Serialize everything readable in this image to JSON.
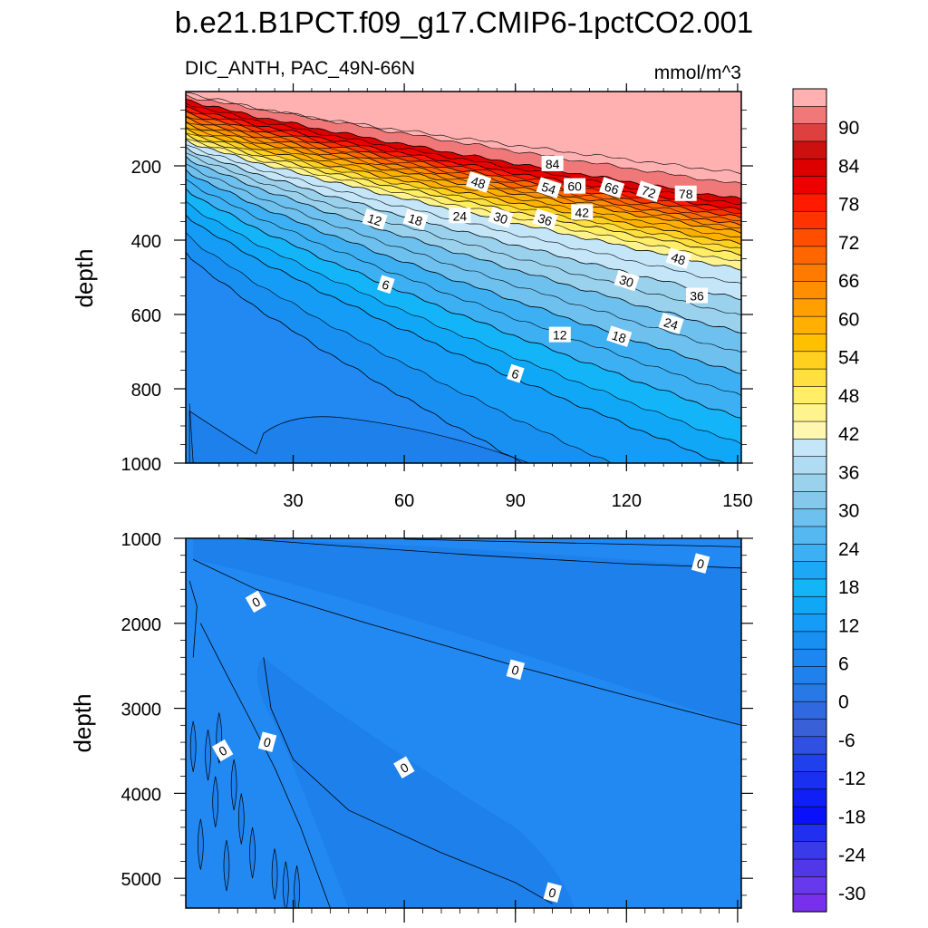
{
  "title": "b.e21.B1PCT.f09_g17.CMIP6-1pctCO2.001",
  "chart_data": [
    {
      "type": "contour",
      "panel": "upper",
      "subtitle_left": "DIC_ANTH, PAC_49N-66N",
      "subtitle_right": "mmol/m^3",
      "ylabel": "depth",
      "xlabel": "",
      "xlim": [
        1,
        151
      ],
      "ylim": [
        1000,
        0
      ],
      "xticks": [
        30,
        60,
        90,
        120,
        150
      ],
      "yticks": [
        200,
        400,
        600,
        800,
        1000
      ],
      "field": {
        "description": "anthropogenic DIC decreasing with depth; isolines deepen toward larger x",
        "surface_value": 100,
        "isolines": [
          {
            "value": 84,
            "depth_at_x1": 20,
            "depth_at_x151": 290
          },
          {
            "value": 78,
            "depth_at_x1": 40,
            "depth_at_x151": 320
          },
          {
            "value": 72,
            "depth_at_x1": 55,
            "depth_at_x151": 340
          },
          {
            "value": 66,
            "depth_at_x1": 70,
            "depth_at_x151": 360
          },
          {
            "value": 60,
            "depth_at_x1": 85,
            "depth_at_x151": 380
          },
          {
            "value": 54,
            "depth_at_x1": 100,
            "depth_at_x151": 410
          },
          {
            "value": 48,
            "depth_at_x1": 115,
            "depth_at_x151": 440
          },
          {
            "value": 42,
            "depth_at_x1": 130,
            "depth_at_x151": 480
          },
          {
            "value": 36,
            "depth_at_x1": 150,
            "depth_at_x151": 560
          },
          {
            "value": 30,
            "depth_at_x1": 175,
            "depth_at_x151": 650
          },
          {
            "value": 24,
            "depth_at_x1": 210,
            "depth_at_x151": 760
          },
          {
            "value": 18,
            "depth_at_x1": 260,
            "depth_at_x151": 880
          },
          {
            "value": 12,
            "depth_at_x1": 330,
            "depth_at_x151": 1020
          },
          {
            "value": 6,
            "depth_at_x1": 430,
            "depth_at_x151": 1300
          }
        ]
      },
      "contour_labels": [
        {
          "text": "84",
          "x": 100,
          "depth": 195
        },
        {
          "text": "48",
          "x": 80,
          "depth": 245
        },
        {
          "text": "54",
          "x": 99,
          "depth": 260
        },
        {
          "text": "60",
          "x": 106,
          "depth": 255
        },
        {
          "text": "66",
          "x": 116,
          "depth": 260
        },
        {
          "text": "72",
          "x": 126,
          "depth": 270
        },
        {
          "text": "78",
          "x": 136,
          "depth": 275
        },
        {
          "text": "12",
          "x": 52,
          "depth": 345
        },
        {
          "text": "18",
          "x": 63,
          "depth": 345
        },
        {
          "text": "24",
          "x": 75,
          "depth": 335
        },
        {
          "text": "30",
          "x": 86,
          "depth": 340
        },
        {
          "text": "36",
          "x": 98,
          "depth": 345
        },
        {
          "text": "42",
          "x": 108,
          "depth": 325
        },
        {
          "text": "48",
          "x": 134,
          "depth": 450
        },
        {
          "text": "30",
          "x": 120,
          "depth": 510
        },
        {
          "text": "36",
          "x": 139,
          "depth": 550
        },
        {
          "text": "6",
          "x": 55,
          "depth": 520
        },
        {
          "text": "24",
          "x": 132,
          "depth": 625
        },
        {
          "text": "12",
          "x": 102,
          "depth": 655
        },
        {
          "text": "18",
          "x": 118,
          "depth": 660
        },
        {
          "text": "6",
          "x": 90,
          "depth": 760
        }
      ]
    },
    {
      "type": "contour",
      "panel": "lower",
      "ylabel": "depth",
      "xlim": [
        1,
        151
      ],
      "ylim": [
        5350,
        1000
      ],
      "xticks": [
        30,
        60,
        90,
        120,
        150
      ],
      "yticks": [
        1000,
        2000,
        3000,
        4000,
        5000
      ],
      "contour_labels": [
        {
          "text": "0",
          "x": 140,
          "depth": 1300
        },
        {
          "text": "0",
          "x": 20,
          "depth": 1750
        },
        {
          "text": "0",
          "x": 90,
          "depth": 2550
        },
        {
          "text": "0",
          "x": 11,
          "depth": 3500
        },
        {
          "text": "0",
          "x": 23,
          "depth": 3400
        },
        {
          "text": "0",
          "x": 60,
          "depth": 3700
        },
        {
          "text": "0",
          "x": 100,
          "depth": 5170
        }
      ]
    }
  ],
  "colorbar": {
    "labels": [
      "90",
      "84",
      "78",
      "72",
      "66",
      "60",
      "54",
      "48",
      "42",
      "36",
      "30",
      "24",
      "18",
      "12",
      "6",
      "0",
      "-6",
      "-12",
      "-18",
      "-24",
      "-30"
    ],
    "colors": [
      "#ffb0b0",
      "#f07878",
      "#de4040",
      "#cc1010",
      "#dc0000",
      "#ec0000",
      "#ff1a00",
      "#ff3300",
      "#ff4e00",
      "#ff6600",
      "#ff7a00",
      "#ff8f00",
      "#ffa000",
      "#ffb000",
      "#ffc000",
      "#ffd020",
      "#ffe040",
      "#ffee66",
      "#fff390",
      "#fff7b0",
      "#c4e6f8",
      "#afdcf2",
      "#9ad2ee",
      "#85c8ec",
      "#6ec0ee",
      "#55b8f0",
      "#3cb0f2",
      "#1ca8f4",
      "#14b4f8",
      "#10a8f6",
      "#149cf6",
      "#1890f2",
      "#1e86ef",
      "#2080ec",
      "#2878e6",
      "#3068e0",
      "#3a60d8",
      "#3050e4",
      "#2040ec",
      "#1a30f0",
      "#1020f4",
      "#0a10f8",
      "#2030ee",
      "#3a3ae8",
      "#5038e8",
      "#6838ec",
      "#7830ec"
    ]
  },
  "colors": {
    "deep_blue": "#2289f2",
    "deeper_blue": "#1e80ea",
    "cyan": "#0fb2f6",
    "surface_pink": "#ffb0b0"
  }
}
